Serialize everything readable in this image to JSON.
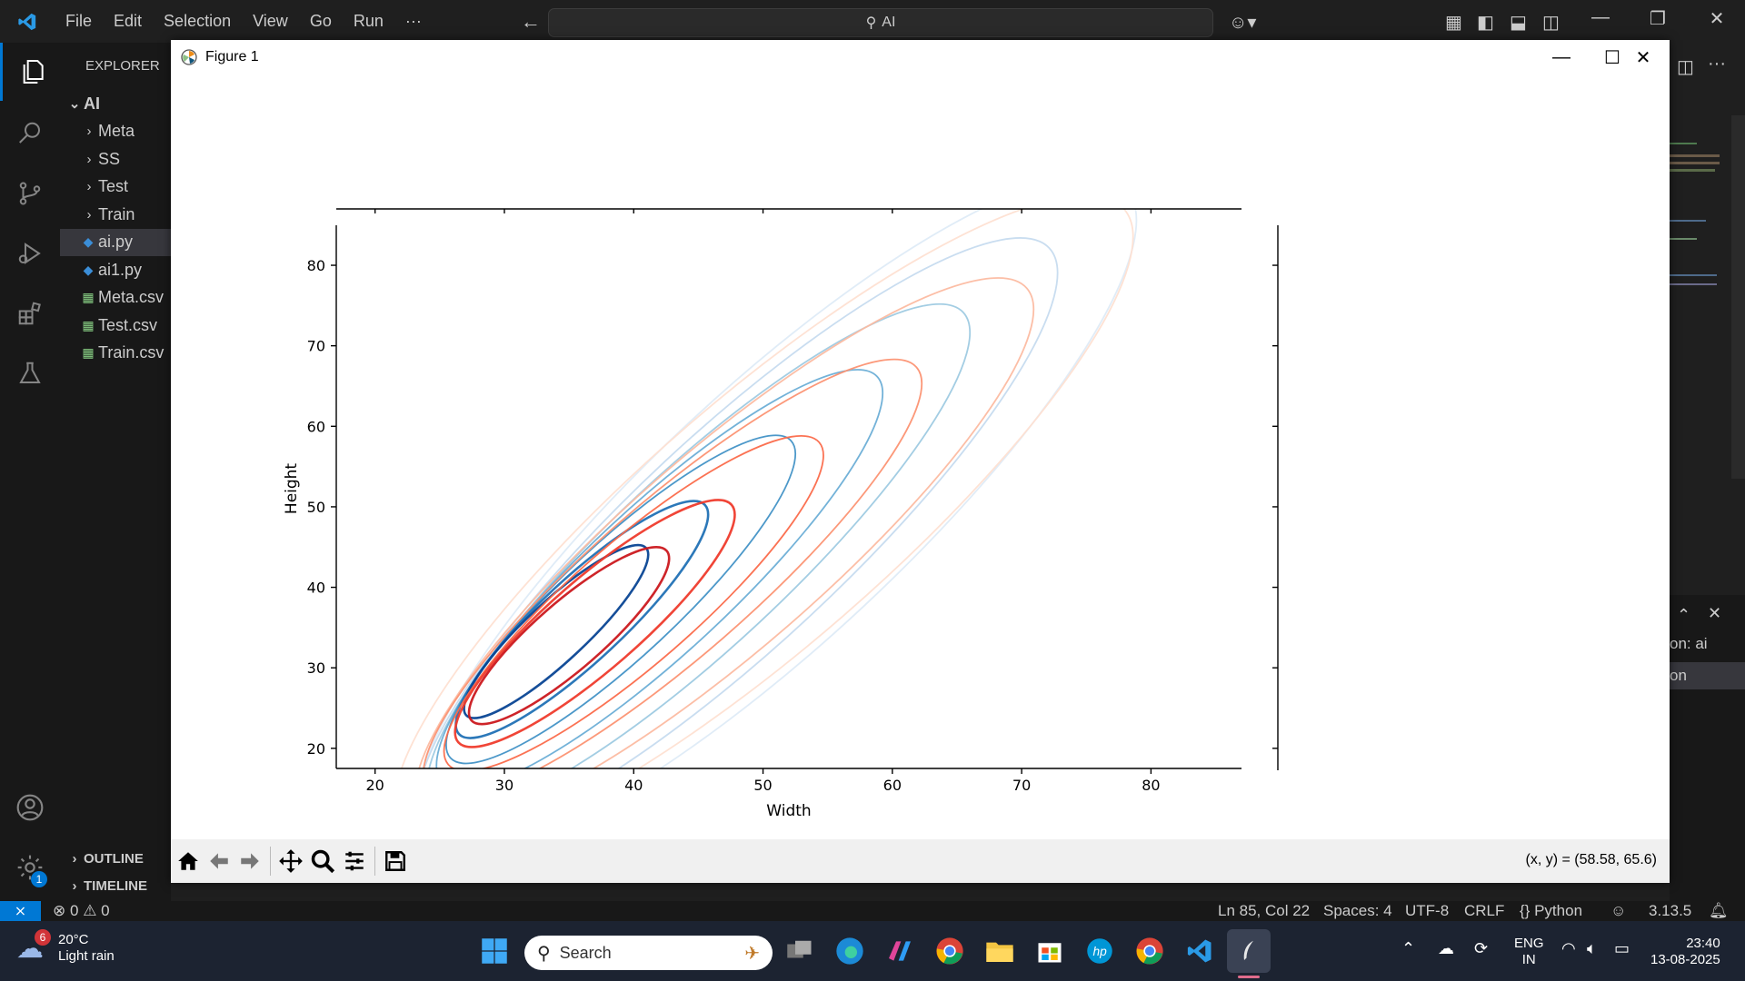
{
  "titlebar": {
    "menus": [
      "File",
      "Edit",
      "Selection",
      "View",
      "Go",
      "Run"
    ],
    "more": "···",
    "search_text": "AI"
  },
  "explorer": {
    "title": "EXPLORER",
    "root": "AI",
    "items": [
      {
        "label": "Meta",
        "kind": "folder"
      },
      {
        "label": "SS",
        "kind": "folder"
      },
      {
        "label": "Test",
        "kind": "folder"
      },
      {
        "label": "Train",
        "kind": "folder"
      },
      {
        "label": "ai.py",
        "kind": "py",
        "selected": true
      },
      {
        "label": "ai1.py",
        "kind": "py"
      },
      {
        "label": "Meta.csv",
        "kind": "csv"
      },
      {
        "label": "Test.csv",
        "kind": "csv"
      },
      {
        "label": "Train.csv",
        "kind": "csv"
      }
    ],
    "outline": "OUTLINE",
    "timeline": "TIMELINE"
  },
  "activity_badge": "1",
  "panel_fragments": {
    "line1": "on: ai",
    "line2": "on"
  },
  "statusbar": {
    "errors": "0",
    "warnings": "0",
    "position": "Ln 85, Col 22",
    "spaces": "Spaces: 4",
    "encoding": "UTF-8",
    "eol": "CRLF",
    "language": "Python",
    "version": "3.13.5"
  },
  "figure": {
    "window_title": "Figure 1",
    "coords": "(x, y) = (58.58, 65.6)",
    "toolbar": [
      "home",
      "back",
      "forward",
      "pan",
      "zoom",
      "configure",
      "save"
    ]
  },
  "chart_data": {
    "type": "kde_contour",
    "title": "",
    "xlabel": "Width",
    "ylabel": "Height",
    "xlim": [
      17,
      87
    ],
    "ylim": [
      17.5,
      87
    ],
    "xticks": [
      20,
      30,
      40,
      50,
      60,
      70,
      80
    ],
    "yticks": [
      20,
      30,
      40,
      50,
      60,
      70,
      80
    ],
    "series": [
      {
        "color_map": "Blues",
        "levels": [
          {
            "x": 34,
            "y": 34.5,
            "a": 9.5,
            "b": 2.3,
            "angle": 43,
            "color": "#084594"
          },
          {
            "x": 36,
            "y": 36,
            "a": 13,
            "b": 3.2,
            "angle": 43,
            "color": "#2171b5"
          },
          {
            "x": 39,
            "y": 38.5,
            "a": 18,
            "b": 4.4,
            "angle": 43,
            "color": "#4292c6"
          },
          {
            "x": 42,
            "y": 41,
            "a": 23,
            "b": 5.6,
            "angle": 43,
            "color": "#6baed6"
          },
          {
            "x": 45,
            "y": 43.5,
            "a": 28,
            "b": 6.8,
            "angle": 43,
            "color": "#9ecae1"
          },
          {
            "x": 48,
            "y": 46,
            "a": 33,
            "b": 8.2,
            "angle": 43,
            "color": "#c6dbef"
          },
          {
            "x": 51,
            "y": 49,
            "a": 37,
            "b": 9.8,
            "angle": 43,
            "color": "#deebf7"
          }
        ]
      },
      {
        "color_map": "Reds",
        "levels": [
          {
            "x": 35,
            "y": 34,
            "a": 10,
            "b": 2.6,
            "angle": 41,
            "color": "#cb181d"
          },
          {
            "x": 37,
            "y": 35.5,
            "a": 14,
            "b": 3.5,
            "angle": 41,
            "color": "#ef3b2c"
          },
          {
            "x": 40,
            "y": 38,
            "a": 19,
            "b": 4.7,
            "angle": 41,
            "color": "#fb6a4a"
          },
          {
            "x": 43,
            "y": 41,
            "a": 25,
            "b": 6,
            "angle": 41,
            "color": "#fc9272"
          },
          {
            "x": 47,
            "y": 44.5,
            "a": 31,
            "b": 7.6,
            "angle": 41,
            "color": "#fcbba1"
          },
          {
            "x": 50,
            "y": 48,
            "a": 37,
            "b": 9.5,
            "angle": 41,
            "color": "#fee0d2"
          }
        ]
      }
    ]
  },
  "taskbar": {
    "weather_temp": "20°C",
    "weather_desc": "Light rain",
    "weather_badge": "6",
    "search_placeholder": "Search",
    "lang_top": "ENG",
    "lang_bottom": "IN",
    "time": "23:40",
    "date": "13-08-2025"
  }
}
